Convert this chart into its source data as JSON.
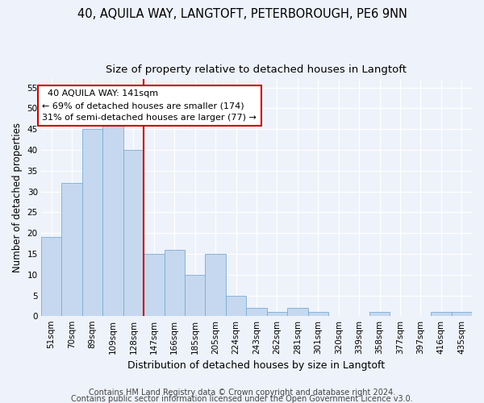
{
  "title1": "40, AQUILA WAY, LANGTOFT, PETERBOROUGH, PE6 9NN",
  "title2": "Size of property relative to detached houses in Langtoft",
  "xlabel": "Distribution of detached houses by size in Langtoft",
  "ylabel": "Number of detached properties",
  "categories": [
    "51sqm",
    "70sqm",
    "89sqm",
    "109sqm",
    "128sqm",
    "147sqm",
    "166sqm",
    "185sqm",
    "205sqm",
    "224sqm",
    "243sqm",
    "262sqm",
    "281sqm",
    "301sqm",
    "320sqm",
    "339sqm",
    "358sqm",
    "377sqm",
    "397sqm",
    "416sqm",
    "435sqm"
  ],
  "values": [
    19,
    32,
    45,
    46,
    40,
    15,
    16,
    10,
    15,
    5,
    2,
    1,
    2,
    1,
    0,
    0,
    1,
    0,
    0,
    1,
    1
  ],
  "bar_color": "#c5d8ef",
  "bar_edge_color": "#7aadd4",
  "vline_x": 4.5,
  "vline_color": "#cc0000",
  "annotation_line1": "  40 AQUILA WAY: 141sqm",
  "annotation_line2": "← 69% of detached houses are smaller (174)",
  "annotation_line3": "31% of semi-detached houses are larger (77) →",
  "annotation_box_edge_color": "#cc0000",
  "ylim": [
    0,
    57
  ],
  "yticks": [
    0,
    5,
    10,
    15,
    20,
    25,
    30,
    35,
    40,
    45,
    50,
    55
  ],
  "footer1": "Contains HM Land Registry data © Crown copyright and database right 2024.",
  "footer2": "Contains public sector information licensed under the Open Government Licence v3.0.",
  "bg_color": "#eef2fa",
  "grid_color": "#ffffff",
  "title1_fontsize": 10.5,
  "title2_fontsize": 9.5,
  "xlabel_fontsize": 9,
  "ylabel_fontsize": 8.5,
  "tick_fontsize": 7.5,
  "annotation_fontsize": 8,
  "footer_fontsize": 7
}
